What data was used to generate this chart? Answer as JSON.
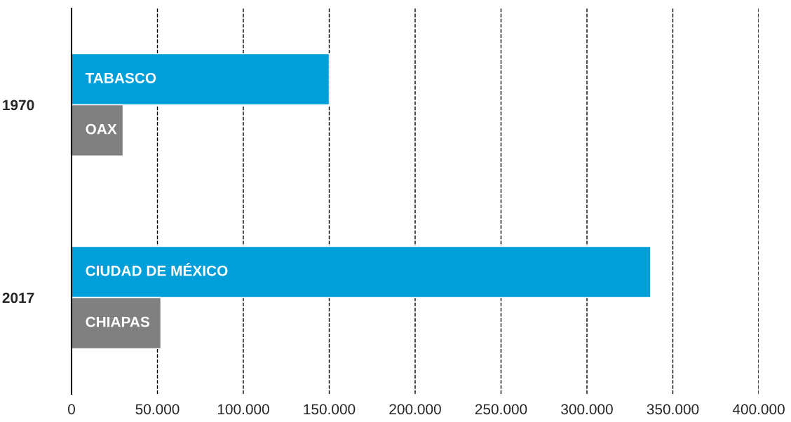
{
  "chart_data": {
    "type": "bar",
    "orientation": "horizontal",
    "categories": [
      "1970",
      "2017"
    ],
    "series": [
      {
        "color": "#009fda",
        "values": [
          150000,
          337000
        ],
        "value_labels": [
          "TABASCO",
          "CIUDAD DE MÉXICO"
        ]
      },
      {
        "color": "#808080",
        "values": [
          30000,
          52000
        ],
        "value_labels": [
          "OAX",
          "CHIAPAS"
        ]
      }
    ],
    "xlim": [
      0,
      400000
    ],
    "xticks": [
      0,
      {
        "value": 50000,
        "label": "50.000"
      },
      {
        "value": 100000,
        "label": "100.000"
      },
      {
        "value": 150000,
        "label": "150.000"
      },
      {
        "value": 200000,
        "label": "200.000"
      },
      {
        "value": 250000,
        "label": "250.000"
      },
      {
        "value": 300000,
        "label": "300.000"
      },
      {
        "value": 350000,
        "label": "350.000"
      },
      {
        "value": 400000,
        "label": "400.000"
      }
    ],
    "grid": "x"
  }
}
